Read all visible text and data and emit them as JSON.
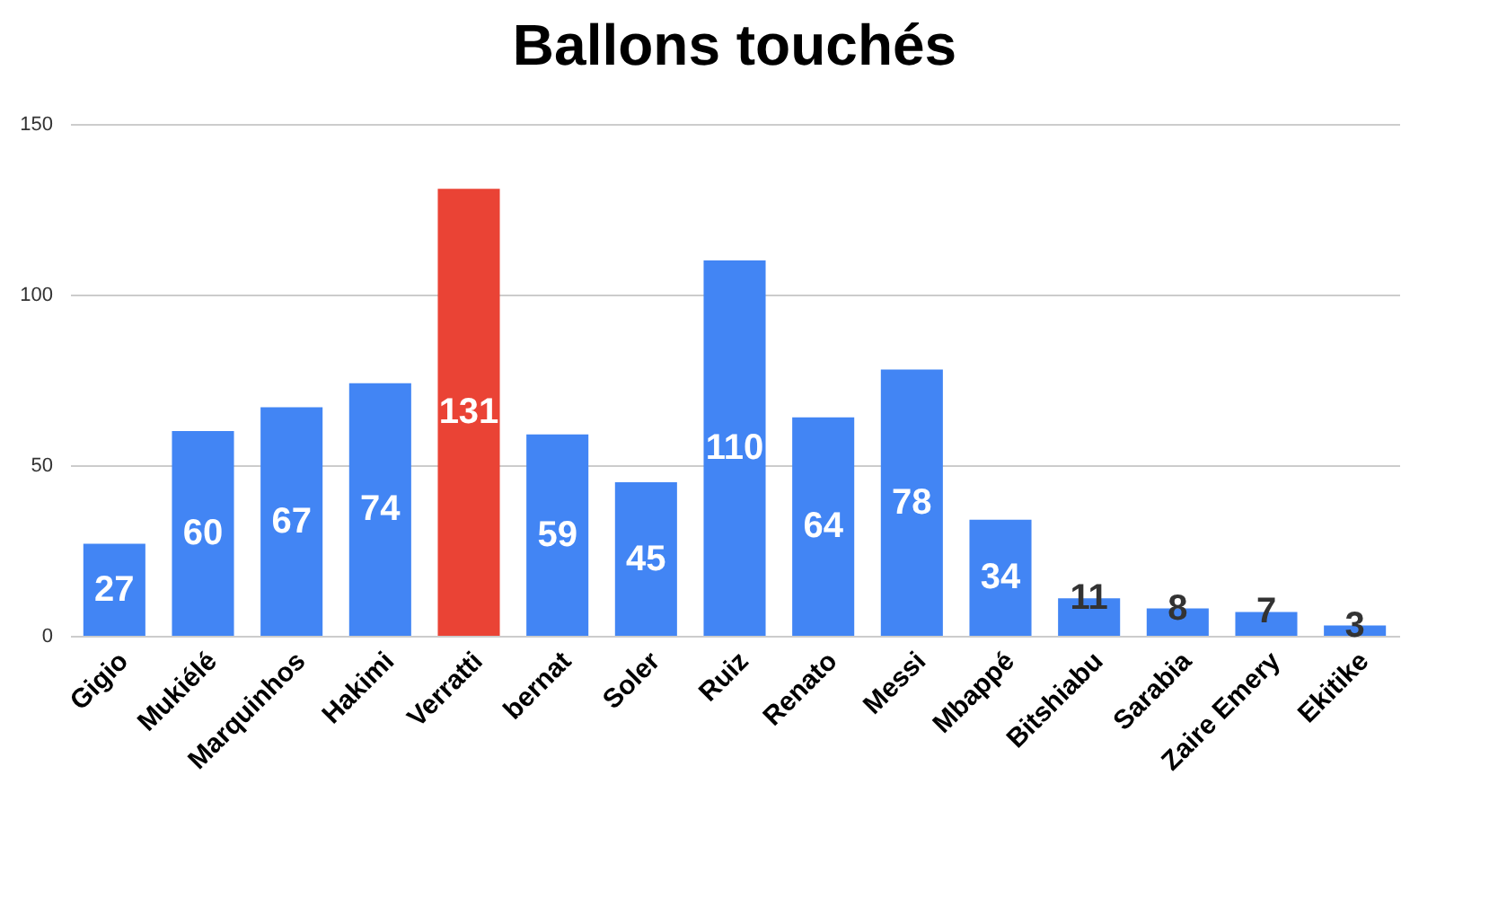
{
  "chart_data": {
    "type": "bar",
    "title": "Ballons touchés",
    "categories": [
      "Gigio",
      "Mukiélé",
      "Marquinhos",
      "Hakimi",
      "Verratti",
      "bernat",
      "Soler",
      "Ruiz",
      "Renato",
      "Messi",
      "Mbappé",
      "Bitshiabu",
      "Sarabia",
      "Zaire Emery",
      "Ekitike"
    ],
    "values": [
      27,
      60,
      67,
      74,
      131,
      59,
      45,
      110,
      64,
      78,
      34,
      11,
      8,
      7,
      3
    ],
    "colors": [
      "#4285f4",
      "#4285f4",
      "#4285f4",
      "#4285f4",
      "#ea4335",
      "#4285f4",
      "#4285f4",
      "#4285f4",
      "#4285f4",
      "#4285f4",
      "#4285f4",
      "#4285f4",
      "#4285f4",
      "#4285f4",
      "#4285f4"
    ],
    "ylim": [
      0,
      150
    ],
    "yticks": [
      0,
      50,
      100,
      150
    ],
    "grid": "y",
    "data_labels": true
  }
}
